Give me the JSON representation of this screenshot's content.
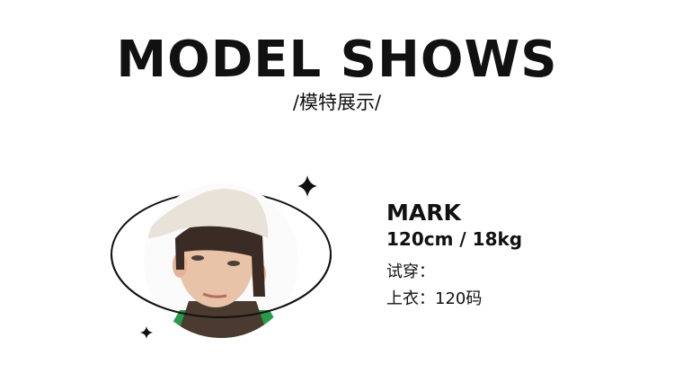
{
  "header": {
    "title": "MODEL SHOWS",
    "subtitle": "/模特展示/"
  },
  "model": {
    "name": "MARK",
    "stats": "120cm / 18kg",
    "try_on_label": "试穿：",
    "top_size": "上衣：120码"
  },
  "colors": {
    "text": "#111111",
    "accent_shirt": "#2a9a4a",
    "cap": "#e8e2d8"
  }
}
